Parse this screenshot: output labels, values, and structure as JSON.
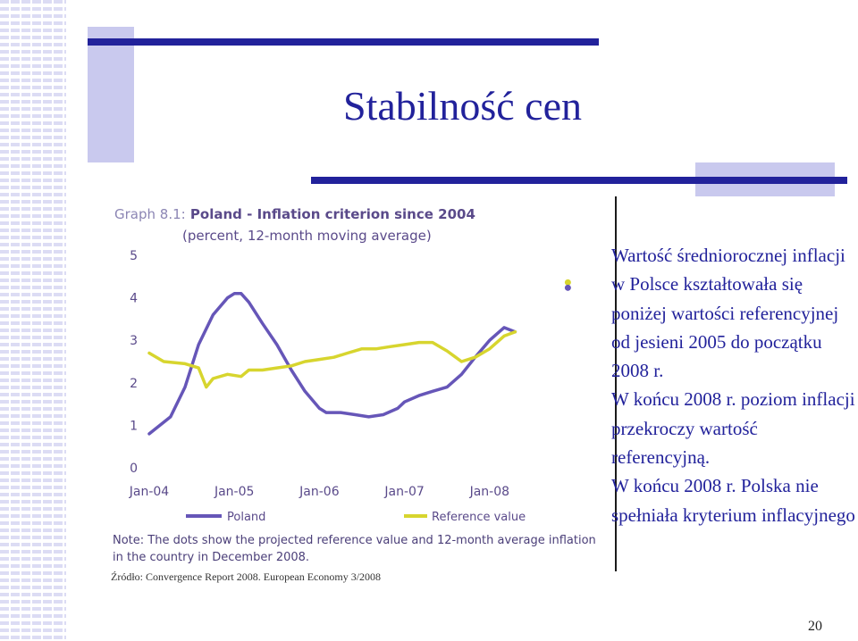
{
  "slide": {
    "title": "Stabilność cen",
    "page_number": "20",
    "source": "Źródło: Convergence Report 2008. European Economy 3/2008",
    "paragraphs": [
      "Wartość średniorocznej inflacji w Polsce kształtowała się poniżej wartości referencyjnej od jesieni 2005 do początku 2008 r.",
      "W końcu 2008 r. poziom inflacji przekroczy wartość referencyjną.",
      "W końcu 2008 r. Polska nie spełniała kryterium inflacyjnego"
    ],
    "accent_color": "#22229b"
  },
  "chart_data": {
    "type": "line",
    "title_label": "Graph 8.1:",
    "title": "Poland - Inflation criterion since 2004",
    "subtitle": "(percent, 12-month moving average)",
    "note": "Note: The dots show the projected reference value and 12-month average inflation in the country in December 2008.",
    "x_tick_labels": [
      "Jan-04",
      "Jan-05",
      "Jan-06",
      "Jan-07",
      "Jan-08"
    ],
    "xlim": [
      2004.0,
      2009.0
    ],
    "ylim": [
      0,
      5
    ],
    "y_ticks": [
      0,
      1,
      2,
      3,
      4,
      5
    ],
    "grid": false,
    "legend_position": "bottom",
    "series": [
      {
        "name": "Poland",
        "color": "#6656b8",
        "x": [
          2004.0,
          2004.25,
          2004.42,
          2004.58,
          2004.75,
          2004.92,
          2005.0,
          2005.08,
          2005.17,
          2005.33,
          2005.5,
          2005.67,
          2005.83,
          2006.0,
          2006.08,
          2006.25,
          2006.42,
          2006.58,
          2006.75,
          2006.92,
          2007.0,
          2007.17,
          2007.33,
          2007.5,
          2007.67,
          2007.83,
          2008.0,
          2008.17,
          2008.3
        ],
        "y": [
          0.8,
          1.2,
          1.9,
          2.9,
          3.6,
          4.0,
          4.1,
          4.1,
          3.9,
          3.4,
          2.9,
          2.3,
          1.8,
          1.4,
          1.3,
          1.3,
          1.25,
          1.2,
          1.25,
          1.4,
          1.55,
          1.7,
          1.8,
          1.9,
          2.2,
          2.6,
          3.0,
          3.3,
          3.2
        ]
      },
      {
        "name": "Reference value",
        "color": "#d7d52e",
        "x": [
          2004.0,
          2004.17,
          2004.42,
          2004.58,
          2004.67,
          2004.75,
          2004.92,
          2005.08,
          2005.17,
          2005.33,
          2005.5,
          2005.67,
          2005.83,
          2006.0,
          2006.17,
          2006.33,
          2006.5,
          2006.67,
          2006.83,
          2007.0,
          2007.17,
          2007.33,
          2007.5,
          2007.67,
          2007.83,
          2008.0,
          2008.17,
          2008.3
        ],
        "y": [
          2.7,
          2.5,
          2.45,
          2.35,
          1.9,
          2.1,
          2.2,
          2.15,
          2.3,
          2.3,
          2.35,
          2.4,
          2.5,
          2.55,
          2.6,
          2.7,
          2.8,
          2.8,
          2.85,
          2.9,
          2.95,
          2.95,
          2.75,
          2.5,
          2.6,
          2.8,
          3.1,
          3.2
        ]
      }
    ],
    "projection_dots": [
      {
        "series": "Reference value",
        "x": 2008.92,
        "y": 4.3
      },
      {
        "series": "Poland",
        "x": 2008.92,
        "y": 4.3
      }
    ]
  }
}
